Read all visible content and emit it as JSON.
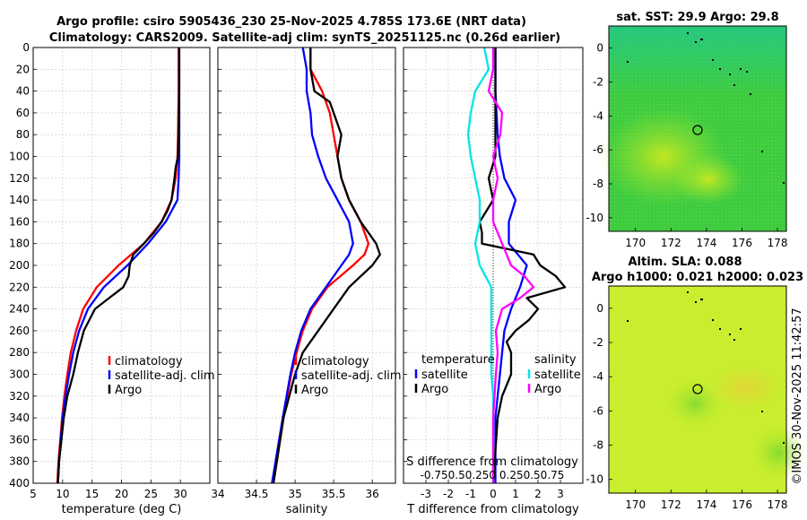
{
  "titles": {
    "line1": "Argo profile: csiro 5905436_230 25-Nov-2025 4.785S 173.6E (NRT data)",
    "line2": "Climatology: CARS2009. Satellite-adj clim: synTS_20251125.nc (0.26d earlier)",
    "map1": "sat. SST: 29.9 Argo: 29.8",
    "map2_line1": "Altim. SLA: 0.088",
    "map2_line2": "Argo h1000: 0.021 h2000: 0.023"
  },
  "watermark": "©IMOS 30-Nov-2025 11:42:57",
  "colors": {
    "climatology": "#ff0000",
    "satellite": "#0000ff",
    "argo": "#000000",
    "sat_salinity": "#00e5e5",
    "argo_salinity": "#ff00ff"
  },
  "chart_data": [
    {
      "type": "line",
      "name": "temperature",
      "xlabel": "temperature (deg C)",
      "ylabel": "",
      "xlim": [
        5,
        35
      ],
      "ylim": [
        0,
        400
      ],
      "xticks": [
        "5",
        "10",
        "15",
        "20",
        "25",
        "30"
      ],
      "yticks": [
        "0",
        "20",
        "40",
        "60",
        "80",
        "100",
        "120",
        "140",
        "160",
        "180",
        "200",
        "220",
        "240",
        "260",
        "280",
        "300",
        "320",
        "340",
        "360",
        "380",
        "400"
      ],
      "legend": [
        "climatology",
        "satellite-adj. clim",
        "Argo"
      ],
      "series": [
        {
          "name": "climatology",
          "depth": [
            0,
            40,
            80,
            100,
            120,
            140,
            160,
            180,
            200,
            220,
            240,
            260,
            280,
            300,
            320,
            340,
            360,
            380,
            400
          ],
          "values": [
            29.7,
            29.7,
            29.6,
            29.5,
            29.2,
            28.5,
            26.8,
            23.8,
            19.5,
            15.8,
            13.5,
            12.3,
            11.4,
            10.8,
            10.3,
            9.9,
            9.6,
            9.3,
            9.1
          ]
        },
        {
          "name": "satellite-adj. clim",
          "depth": [
            0,
            40,
            80,
            100,
            120,
            140,
            160,
            180,
            200,
            220,
            240,
            260,
            280,
            300,
            320,
            340,
            360,
            380,
            400
          ],
          "values": [
            29.8,
            29.8,
            29.8,
            29.8,
            29.7,
            29.5,
            27.5,
            24.5,
            21.0,
            17.0,
            14.3,
            12.8,
            11.8,
            11.1,
            10.5,
            10.0,
            9.7,
            9.4,
            9.2
          ]
        },
        {
          "name": "Argo",
          "depth": [
            0,
            40,
            80,
            100,
            110,
            120,
            140,
            150,
            160,
            170,
            180,
            190,
            200,
            210,
            220,
            240,
            260,
            280,
            300,
            320,
            340,
            360,
            380,
            400
          ],
          "values": [
            29.8,
            29.8,
            29.7,
            29.6,
            29.2,
            29.0,
            28.5,
            27.8,
            26.8,
            25.5,
            23.8,
            22.0,
            21.4,
            21.2,
            20.3,
            15.5,
            13.6,
            12.6,
            11.8,
            10.8,
            10.2,
            9.8,
            9.4,
            9.2
          ]
        }
      ]
    },
    {
      "type": "line",
      "name": "salinity",
      "xlabel": "salinity",
      "ylabel": "",
      "xlim": [
        34,
        36.3
      ],
      "ylim": [
        0,
        400
      ],
      "xticks": [
        "34",
        "34.5",
        "35",
        "35.5",
        "36"
      ],
      "legend": [
        "climatology",
        "satellite-adj. clim",
        "Argo"
      ],
      "series": [
        {
          "name": "climatology",
          "depth": [
            0,
            20,
            40,
            60,
            80,
            100,
            120,
            140,
            160,
            180,
            190,
            200,
            220,
            240,
            260,
            280,
            300,
            340,
            400
          ],
          "values": [
            35.2,
            35.2,
            35.35,
            35.45,
            35.5,
            35.55,
            35.6,
            35.7,
            35.85,
            35.95,
            35.9,
            35.75,
            35.42,
            35.22,
            35.1,
            35.02,
            34.95,
            34.85,
            34.72
          ]
        },
        {
          "name": "satellite-adj. clim",
          "depth": [
            0,
            20,
            40,
            60,
            80,
            100,
            120,
            140,
            160,
            180,
            190,
            200,
            220,
            240,
            260,
            280,
            300,
            340,
            400
          ],
          "values": [
            35.1,
            35.15,
            35.15,
            35.2,
            35.22,
            35.3,
            35.4,
            35.55,
            35.7,
            35.75,
            35.7,
            35.6,
            35.4,
            35.2,
            35.08,
            35.0,
            34.94,
            34.84,
            34.7
          ]
        },
        {
          "name": "Argo",
          "depth": [
            0,
            20,
            40,
            50,
            60,
            80,
            100,
            120,
            140,
            160,
            170,
            180,
            190,
            200,
            220,
            240,
            260,
            280,
            300,
            340,
            400
          ],
          "values": [
            35.2,
            35.2,
            35.25,
            35.45,
            35.5,
            35.6,
            35.55,
            35.6,
            35.7,
            35.85,
            35.95,
            36.05,
            36.1,
            36.0,
            35.7,
            35.5,
            35.3,
            35.1,
            35.0,
            34.85,
            34.72
          ]
        }
      ]
    },
    {
      "type": "line",
      "name": "difference from climatology",
      "xlabel": "T difference from climatology",
      "top_xlabel": "S difference from climatology",
      "xlim": [
        -4,
        4
      ],
      "ylim": [
        0,
        400
      ],
      "xticks": [
        "-3",
        "-2",
        "-1",
        "0",
        "1",
        "2",
        "3"
      ],
      "top_xticks": [
        "-0.75",
        "-0.5",
        "-0.25",
        "0",
        "0.25",
        "0.5",
        "0.75"
      ],
      "top_xticks_shown": "-0.750.50.250 0.250.50.75",
      "legend_titles": [
        "temperature",
        "salinity"
      ],
      "legend": [
        "satellite",
        "Argo",
        "satellite",
        "Argo"
      ],
      "series": [
        {
          "name": "temperature satellite",
          "depth": [
            0,
            40,
            80,
            100,
            120,
            140,
            160,
            180,
            200,
            220,
            240,
            260,
            280,
            300,
            320,
            340,
            400
          ],
          "values": [
            0.1,
            0.1,
            0.2,
            0.3,
            0.5,
            1.0,
            0.7,
            0.7,
            1.5,
            1.2,
            0.8,
            0.5,
            0.4,
            0.3,
            0.2,
            0.1,
            0.1
          ]
        },
        {
          "name": "temperature Argo",
          "depth": [
            0,
            40,
            80,
            100,
            120,
            140,
            160,
            170,
            180,
            190,
            200,
            210,
            220,
            230,
            240,
            250,
            260,
            270,
            280,
            300,
            320,
            340,
            400
          ],
          "values": [
            0.1,
            0.1,
            0.1,
            0.1,
            -0.2,
            0.0,
            -0.6,
            -0.5,
            -0.5,
            1.8,
            2.1,
            2.8,
            3.2,
            1.5,
            2.0,
            1.6,
            1.0,
            0.6,
            0.8,
            0.8,
            0.4,
            0.2,
            0.0
          ]
        },
        {
          "name": "salinity satellite",
          "depth": [
            0,
            20,
            40,
            60,
            80,
            100,
            120,
            140,
            160,
            180,
            200,
            220,
            240,
            260,
            280,
            300,
            320,
            340,
            400
          ],
          "values": [
            -0.1,
            -0.05,
            -0.2,
            -0.25,
            -0.28,
            -0.25,
            -0.2,
            -0.15,
            -0.15,
            -0.2,
            -0.15,
            -0.02,
            -0.02,
            -0.02,
            -0.02,
            -0.02,
            0.0,
            0.0,
            0.0
          ]
        },
        {
          "name": "salinity Argo",
          "depth": [
            0,
            20,
            40,
            60,
            80,
            100,
            120,
            140,
            160,
            180,
            200,
            210,
            220,
            230,
            240,
            260,
            280,
            300,
            340,
            400
          ],
          "values": [
            0.0,
            0.0,
            -0.05,
            0.1,
            0.08,
            0.0,
            0.05,
            0.0,
            0.0,
            0.1,
            0.2,
            0.35,
            0.45,
            0.3,
            0.1,
            0.03,
            0.05,
            0.03,
            0.0,
            0.0
          ]
        }
      ]
    },
    {
      "type": "heatmap",
      "name": "sat. SST map",
      "title": "sat. SST: 29.9 Argo: 29.8",
      "xticks": [
        "170",
        "172",
        "174",
        "176",
        "178"
      ],
      "yticks": [
        "0",
        "-2",
        "-4",
        "-6",
        "-8",
        "-10"
      ],
      "xlim": [
        168.5,
        178.5
      ],
      "ylim": [
        -10.8,
        1.3
      ],
      "argo_position": [
        173.6,
        -4.785
      ]
    },
    {
      "type": "heatmap",
      "name": "altimetry SLA map",
      "title": "Altim. SLA: 0.088",
      "xticks": [
        "170",
        "172",
        "174",
        "176",
        "178"
      ],
      "yticks": [
        "0",
        "-2",
        "-4",
        "-6",
        "-8",
        "-10"
      ],
      "xlim": [
        168.5,
        178.5
      ],
      "ylim": [
        -10.8,
        1.3
      ],
      "argo_position": [
        173.6,
        -4.785
      ]
    }
  ]
}
